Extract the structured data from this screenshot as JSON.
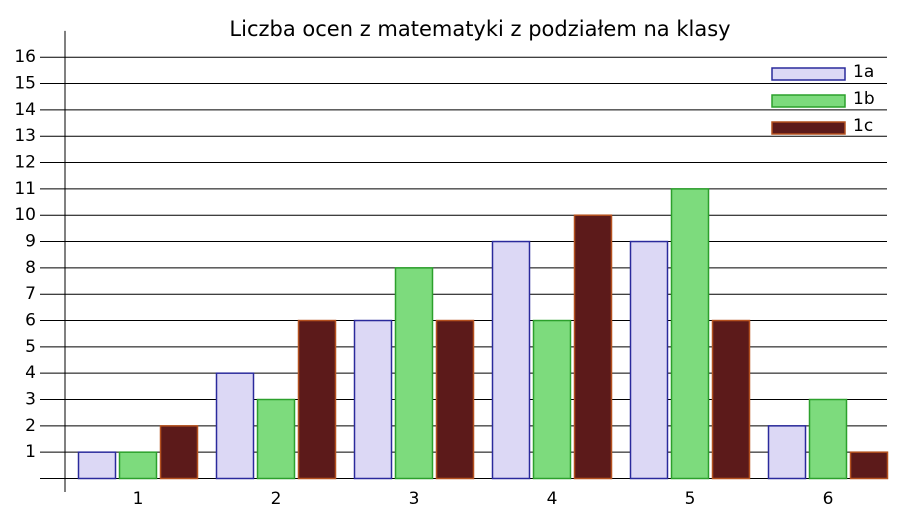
{
  "chart_data": {
    "type": "bar",
    "title": "Liczba ocen z matematyki z podziałem na klasy",
    "categories": [
      "1",
      "2",
      "3",
      "4",
      "5",
      "6"
    ],
    "series": [
      {
        "name": "1a",
        "color": "#dcd8f5",
        "edge": "#2a2a9c",
        "values": [
          1,
          4,
          6,
          9,
          9,
          2
        ]
      },
      {
        "name": "1b",
        "color": "#7ddb7d",
        "edge": "#2ca02c",
        "values": [
          1,
          3,
          8,
          6,
          11,
          3
        ]
      },
      {
        "name": "1c",
        "color": "#5c1a1a",
        "edge": "#b4501e",
        "values": [
          2,
          6,
          6,
          10,
          6,
          1
        ]
      }
    ],
    "ylim": [
      0,
      17
    ],
    "yticks": [
      1,
      2,
      3,
      4,
      5,
      6,
      7,
      8,
      9,
      10,
      11,
      12,
      13,
      14,
      15,
      16
    ],
    "grid": true,
    "legend": "top-right"
  }
}
